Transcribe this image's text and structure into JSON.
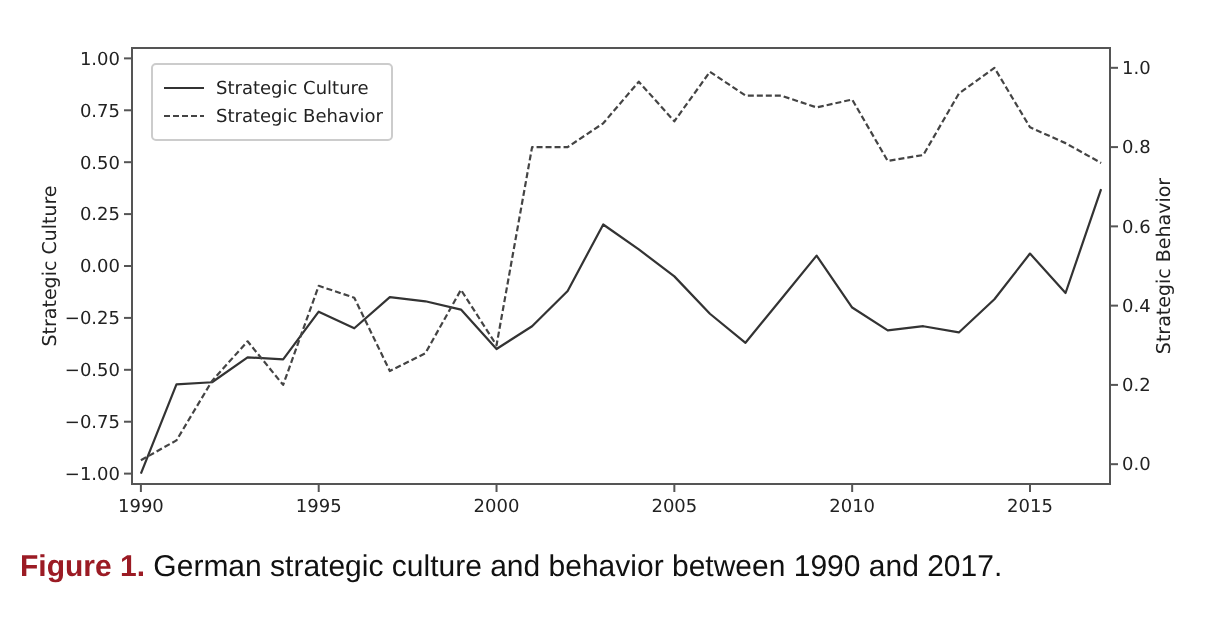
{
  "chart_data": {
    "type": "line",
    "ylabel": "Strategic Culture",
    "y2label": "Strategic Behavior",
    "x": [
      1990,
      1991,
      1992,
      1993,
      1994,
      1995,
      1996,
      1997,
      1998,
      1999,
      2000,
      2001,
      2002,
      2003,
      2004,
      2005,
      2006,
      2007,
      2008,
      2009,
      2010,
      2011,
      2012,
      2013,
      2014,
      2015,
      2016,
      2017
    ],
    "series": [
      {
        "name": "Strategic Culture",
        "color": "#333333",
        "line_style": "solid",
        "values": [
          -1.0,
          -0.57,
          -0.56,
          -0.44,
          -0.45,
          -0.22,
          -0.3,
          -0.15,
          -0.17,
          -0.21,
          -0.4,
          -0.29,
          -0.12,
          0.2,
          0.08,
          -0.05,
          -0.23,
          -0.37,
          -0.16,
          0.05,
          -0.2,
          -0.31,
          -0.29,
          -0.32,
          -0.16,
          0.06,
          -0.13,
          0.37
        ]
      },
      {
        "name": "Strategic Behavior",
        "color": "#444444",
        "line_style": "dashed",
        "axis": "y2",
        "values": [
          0.01,
          0.06,
          0.21,
          0.31,
          0.2,
          0.45,
          0.42,
          0.235,
          0.28,
          0.44,
          0.3,
          0.8,
          0.8,
          0.86,
          0.965,
          0.865,
          0.99,
          0.93,
          0.93,
          0.9,
          0.92,
          0.765,
          0.78,
          0.935,
          1.0,
          0.85,
          0.81,
          0.76
        ]
      }
    ],
    "xlim": [
      1989.75,
      2017.25
    ],
    "xticks": [
      1990,
      1995,
      2000,
      2005,
      2010,
      2015
    ],
    "ylim": [
      -1.05,
      1.05
    ],
    "yticks": [
      {
        "value": -1,
        "label": "−1.00"
      },
      {
        "value": -0.75,
        "label": "−0.75"
      },
      {
        "value": -0.5,
        "label": "−0.50"
      },
      {
        "value": -0.25,
        "label": "−0.25"
      },
      {
        "value": 0,
        "label": "0.00"
      },
      {
        "value": 0.25,
        "label": "0.25"
      },
      {
        "value": 0.5,
        "label": "0.50"
      },
      {
        "value": 0.75,
        "label": "0.75"
      },
      {
        "value": 1,
        "label": "1.00"
      }
    ],
    "y2lim": [
      -0.05,
      1.05
    ],
    "y2ticks": [
      {
        "value": 0,
        "label": "0.0"
      },
      {
        "value": 0.2,
        "label": "0.2"
      },
      {
        "value": 0.4,
        "label": "0.4"
      },
      {
        "value": 0.6,
        "label": "0.6"
      },
      {
        "value": 0.8,
        "label": "0.8"
      },
      {
        "value": 1,
        "label": "1.0"
      }
    ],
    "legend": "top left",
    "grid": false,
    "annotations": [
      "Figure 1.",
      "German strategic culture and behavior between 1990 and 2017."
    ]
  }
}
